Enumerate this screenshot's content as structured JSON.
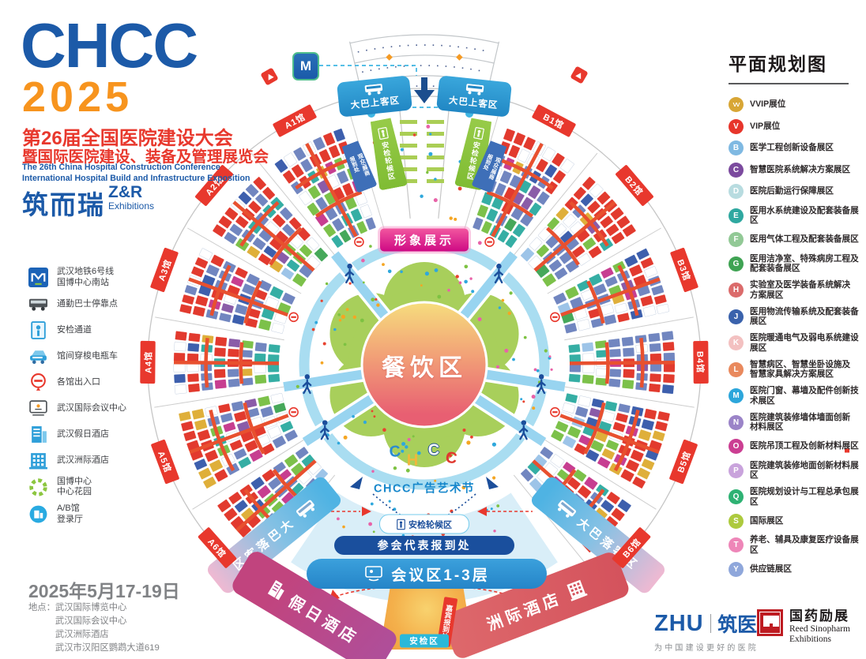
{
  "brand": {
    "logo": "CHCC",
    "year": "2025",
    "title_cn_1": "第26届全国医院建设大会",
    "title_cn_2": "暨国际医院建设、装备及管理展览会",
    "title_en_1": "The 26th China Hospital Construction Conference",
    "title_en_2": "International Hospital Build and Infrastructure Exposition",
    "organizer_cn": "筑而瑞",
    "organizer_abbr": "Z&R",
    "organizer_sub": "Exhibitions"
  },
  "venue_legend": [
    {
      "icon": "metro-icon",
      "lines": [
        "武汉地铁6号线",
        "国博中心南站"
      ]
    },
    {
      "icon": "bus-icon",
      "lines": [
        "通勤巴士停靠点"
      ]
    },
    {
      "icon": "security-gate-icon",
      "lines": [
        "安检通道"
      ]
    },
    {
      "icon": "shuttle-icon",
      "lines": [
        "馆间穿梭电瓶车"
      ]
    },
    {
      "icon": "gate-roundel-icon",
      "lines": [
        "各馆出入口"
      ]
    },
    {
      "icon": "conference-icon",
      "lines": [
        "武汉国际会议中心"
      ]
    },
    {
      "icon": "holiday-inn-icon",
      "lines": [
        "武汉假日酒店"
      ]
    },
    {
      "icon": "intercontinental-icon",
      "lines": [
        "武汉洲际酒店"
      ]
    },
    {
      "icon": "garden-icon",
      "lines": [
        "国博中心",
        "中心花园"
      ]
    },
    {
      "icon": "lobby-icon",
      "lines": [
        "A/B馆",
        "登录厅"
      ]
    }
  ],
  "event_info": {
    "date": "2025年5月17-19日",
    "address_label": "地点：",
    "addresses": [
      "武汉国际博览中心",
      "武汉国际会议中心",
      "武汉洲际酒店",
      "武汉市汉阳区鹦鹉大道619"
    ]
  },
  "zone_legend": {
    "title": "平面规划图",
    "items": [
      {
        "letter": "VV",
        "color": "#D8A635",
        "lines": [
          "VVIP展位"
        ]
      },
      {
        "letter": "V",
        "color": "#E7352B",
        "lines": [
          "VIP展位"
        ]
      },
      {
        "letter": "B",
        "color": "#7FB9E2",
        "lines": [
          "医学工程创新设备展区"
        ]
      },
      {
        "letter": "C",
        "color": "#7B4A9E",
        "lines": [
          "智慧医院系统解决方案展区"
        ]
      },
      {
        "letter": "D",
        "color": "#B8DCE0",
        "lines": [
          "医院后勤运行保障展区"
        ]
      },
      {
        "letter": "E",
        "color": "#2FA8A0",
        "lines": [
          "医用水系统建设及配套装备展区"
        ]
      },
      {
        "letter": "F",
        "color": "#92C996",
        "lines": [
          "医用气体工程及配套装备展区"
        ]
      },
      {
        "letter": "G",
        "color": "#3FA353",
        "lines": [
          "医用洁净室、特殊病房工程及",
          "配套装备展区"
        ]
      },
      {
        "letter": "H",
        "color": "#DB6B6B",
        "lines": [
          "实验室及医学装备系统解决",
          "方案展区"
        ]
      },
      {
        "letter": "J",
        "color": "#3A62AC",
        "lines": [
          "医用物流传输系统及配套装备展区"
        ]
      },
      {
        "letter": "K",
        "color": "#F3C1C1",
        "lines": [
          "医院暖通电气及弱电系统建设展区"
        ]
      },
      {
        "letter": "L",
        "color": "#E9895D",
        "lines": [
          "智慧病区、智慧坐卧设施及",
          "智慧家具解决方案展区"
        ]
      },
      {
        "letter": "M",
        "color": "#2CA6DB",
        "lines": [
          "医院门窗、幕墙及配件创新技术展区"
        ]
      },
      {
        "letter": "N",
        "color": "#9B84C8",
        "lines": [
          "医院建筑装修墙体墙面创新",
          "材料展区"
        ]
      },
      {
        "letter": "O",
        "color": "#CB3E92",
        "lines": [
          "医院吊顶工程及创新材料展区"
        ]
      },
      {
        "letter": "P",
        "color": "#C9A3DC",
        "lines": [
          "医院建筑装修地面创新材料展区"
        ]
      },
      {
        "letter": "Q",
        "color": "#2EB273",
        "lines": [
          "医院规划设计与工程总承包展区"
        ]
      },
      {
        "letter": "S",
        "color": "#ADCA3E",
        "lines": [
          "国际展区"
        ]
      },
      {
        "letter": "T",
        "color": "#EE86B8",
        "lines": [
          "养老、辅具及康复医疗设备展区"
        ]
      },
      {
        "letter": "Y",
        "color": "#8FA7DB",
        "lines": [
          "供应链展区"
        ]
      }
    ]
  },
  "map": {
    "halls": [
      "A1馆",
      "A2馆",
      "A3馆",
      "A4馆",
      "A5馆",
      "A6馆",
      "B1馆",
      "B2馆",
      "B3馆",
      "B4馆",
      "B5馆",
      "B6馆"
    ],
    "metro_m": "M",
    "image_wall": "形象展示",
    "dining": "餐饮区",
    "art_festival": "CHCC广告艺术节",
    "mascot": [
      "C",
      "H",
      "C",
      "C"
    ],
    "security_wait": "安检轮候区",
    "registration": "参会代表报到处",
    "conference_zone": "会议区1-3层",
    "bus_boarding": "大巴上客区",
    "bus_dropoff": "大巴落客区",
    "visitor_reg": [
      "观众/展商",
      "报到处"
    ],
    "holiday_inn": "假日酒店",
    "intercontinental": "洲际酒店",
    "security_area": "安检区",
    "guest_reg": "嘉宾报到处"
  },
  "footer": {
    "zhu_logo": "ZHU",
    "zhu_brand": "筑医台",
    "zhu_tagline": "为中国建设更好的医院",
    "reed_cn": "国药励展",
    "reed_en_1": "Reed Sinopharm",
    "reed_en_2": "Exhibitions"
  },
  "palette": {
    "RED": "#E23A2E",
    "PER": "#7186C0",
    "NAVY": "#3D5FAD",
    "TEAL": "#35AEA4",
    "GREEN": "#7CC14A",
    "DGREEN": "#46A85A",
    "GOLD": "#DFAF3A",
    "PURPLE": "#8A5CA8",
    "MAG": "#C73E90",
    "WHITE": "#FFFFFF",
    "LBLUE": "#9DC4E8",
    "ring": "#A9DDF1",
    "flower": "#A8CF5B",
    "aisle": "#E8502F",
    "dots": [
      "#E8432F",
      "#2FA8DC",
      "#F5A623",
      "#7DC242",
      "#E862A8"
    ]
  }
}
